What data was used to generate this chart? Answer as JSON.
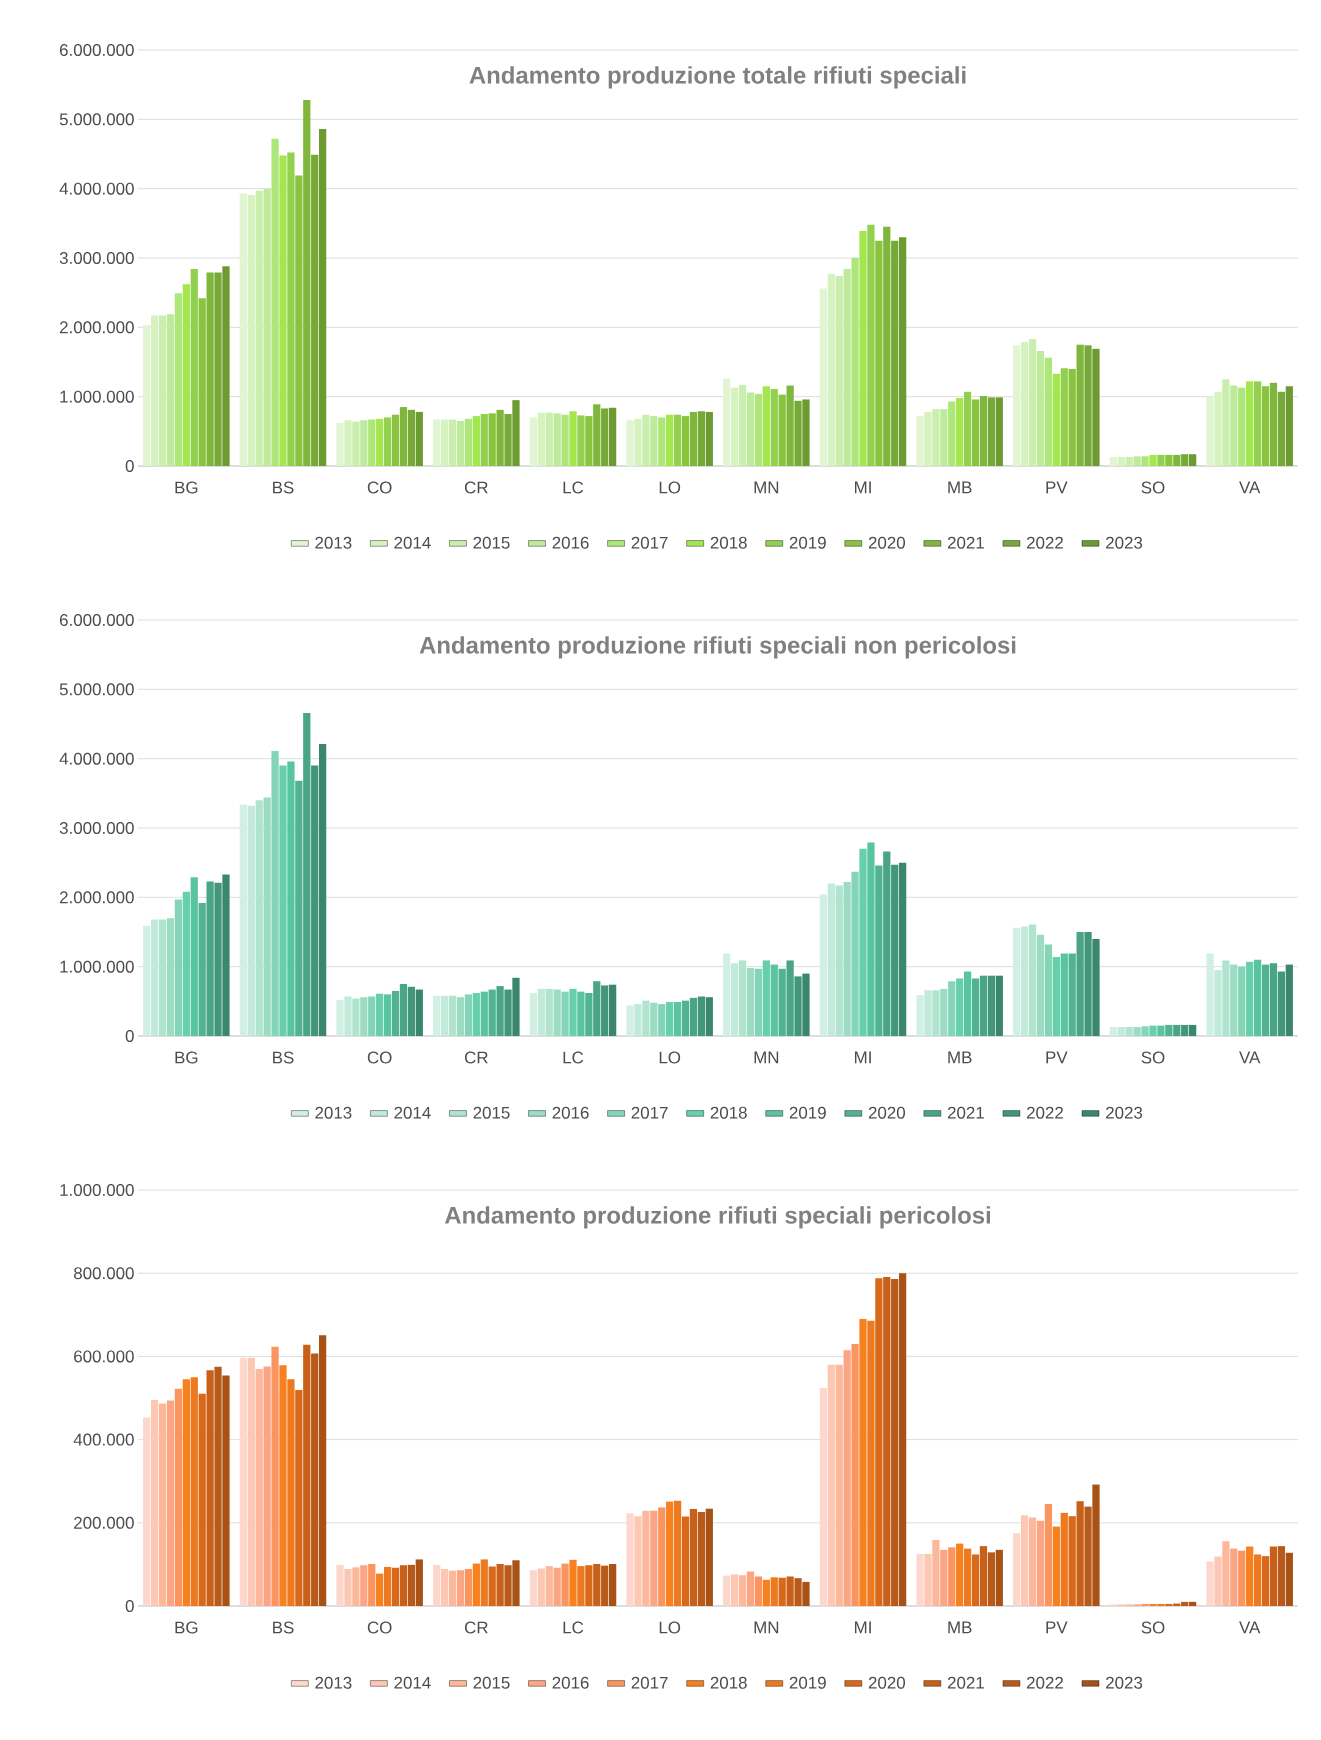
{
  "chart_data": [
    {
      "type": "bar",
      "title": "Andamento produzione totale rifiuti speciali",
      "categories": [
        "BG",
        "BS",
        "CO",
        "CR",
        "LC",
        "LO",
        "MN",
        "MI",
        "MB",
        "PV",
        "SO",
        "VA"
      ],
      "ylim": [
        0,
        6000000
      ],
      "yticks": [
        0,
        {
          "value": 1000000,
          "label": "1.000.000"
        },
        {
          "value": 2000000,
          "label": "2.000.000"
        },
        {
          "value": 3000000,
          "label": "3.000.000"
        },
        {
          "value": 4000000,
          "label": "4.000.000"
        },
        {
          "value": 5000000,
          "label": "5.000.000"
        },
        {
          "value": 6000000,
          "label": "6.000.000"
        }
      ],
      "grid": "y",
      "legend": "bottom",
      "series": [
        {
          "name": "2013",
          "color": "#e2f5d2",
          "values": [
            2030000,
            3930000,
            620000,
            670000,
            700000,
            660000,
            1260000,
            2560000,
            720000,
            1740000,
            130000,
            1000000
          ]
        },
        {
          "name": "2014",
          "color": "#d6f2bf",
          "values": [
            2170000,
            3910000,
            660000,
            670000,
            770000,
            680000,
            1130000,
            2770000,
            780000,
            1790000,
            130000,
            1070000
          ]
        },
        {
          "name": "2015",
          "color": "#caeeae",
          "values": [
            2170000,
            3970000,
            640000,
            670000,
            770000,
            740000,
            1170000,
            2740000,
            820000,
            1830000,
            130000,
            1250000
          ]
        },
        {
          "name": "2016",
          "color": "#bdeb9b",
          "values": [
            2190000,
            4000000,
            660000,
            650000,
            760000,
            720000,
            1060000,
            2840000,
            820000,
            1660000,
            140000,
            1160000
          ]
        },
        {
          "name": "2017",
          "color": "#ade77a",
          "values": [
            2490000,
            4720000,
            670000,
            680000,
            740000,
            700000,
            1040000,
            3000000,
            930000,
            1560000,
            140000,
            1130000
          ]
        },
        {
          "name": "2018",
          "color": "#a3e64e",
          "values": [
            2620000,
            4480000,
            680000,
            720000,
            790000,
            740000,
            1150000,
            3390000,
            980000,
            1330000,
            160000,
            1220000
          ]
        },
        {
          "name": "2019",
          "color": "#92d050",
          "values": [
            2840000,
            4520000,
            700000,
            750000,
            730000,
            740000,
            1110000,
            3480000,
            1070000,
            1410000,
            160000,
            1220000
          ]
        },
        {
          "name": "2020",
          "color": "#8ac43f",
          "values": [
            2420000,
            4190000,
            740000,
            760000,
            720000,
            720000,
            1030000,
            3250000,
            960000,
            1400000,
            160000,
            1150000
          ]
        },
        {
          "name": "2021",
          "color": "#7fb63c",
          "values": [
            2790000,
            5280000,
            850000,
            810000,
            890000,
            780000,
            1160000,
            3450000,
            1010000,
            1750000,
            160000,
            1200000
          ]
        },
        {
          "name": "2022",
          "color": "#76a937",
          "values": [
            2790000,
            4490000,
            810000,
            750000,
            830000,
            790000,
            940000,
            3250000,
            990000,
            1740000,
            170000,
            1070000
          ]
        },
        {
          "name": "2023",
          "color": "#6b9b31",
          "values": [
            2880000,
            4860000,
            780000,
            950000,
            840000,
            780000,
            960000,
            3300000,
            990000,
            1690000,
            170000,
            1150000
          ]
        }
      ]
    },
    {
      "type": "bar",
      "title": "Andamento produzione rifiuti speciali non pericolosi",
      "categories": [
        "BG",
        "BS",
        "CO",
        "CR",
        "LC",
        "LO",
        "MN",
        "MI",
        "MB",
        "PV",
        "SO",
        "VA"
      ],
      "ylim": [
        0,
        6000000
      ],
      "yticks": [
        0,
        {
          "value": 1000000,
          "label": "1.000.000"
        },
        {
          "value": 2000000,
          "label": "2.000.000"
        },
        {
          "value": 3000000,
          "label": "3.000.000"
        },
        {
          "value": 4000000,
          "label": "4.000.000"
        },
        {
          "value": 5000000,
          "label": "5.000.000"
        },
        {
          "value": 6000000,
          "label": "6.000.000"
        }
      ],
      "grid": "y",
      "legend": "bottom",
      "series": [
        {
          "name": "2013",
          "color": "#d1efe3",
          "values": [
            1590000,
            3340000,
            520000,
            580000,
            620000,
            440000,
            1190000,
            2040000,
            590000,
            1560000,
            130000,
            1190000
          ]
        },
        {
          "name": "2014",
          "color": "#c2eadb",
          "values": [
            1680000,
            3320000,
            570000,
            580000,
            680000,
            460000,
            1050000,
            2200000,
            660000,
            1580000,
            130000,
            950000
          ]
        },
        {
          "name": "2015",
          "color": "#b0e4d0",
          "values": [
            1680000,
            3400000,
            540000,
            580000,
            680000,
            510000,
            1090000,
            2170000,
            660000,
            1610000,
            130000,
            1090000
          ]
        },
        {
          "name": "2016",
          "color": "#9cdcc3",
          "values": [
            1700000,
            3440000,
            560000,
            560000,
            670000,
            480000,
            980000,
            2220000,
            680000,
            1460000,
            130000,
            1030000
          ]
        },
        {
          "name": "2017",
          "color": "#84d5b7",
          "values": [
            1970000,
            4110000,
            570000,
            600000,
            640000,
            460000,
            970000,
            2370000,
            790000,
            1320000,
            140000,
            1000000
          ]
        },
        {
          "name": "2018",
          "color": "#66cfac",
          "values": [
            2080000,
            3900000,
            610000,
            620000,
            680000,
            490000,
            1090000,
            2700000,
            830000,
            1140000,
            150000,
            1070000
          ]
        },
        {
          "name": "2019",
          "color": "#58c4a0",
          "values": [
            2290000,
            3960000,
            600000,
            640000,
            640000,
            490000,
            1030000,
            2790000,
            930000,
            1190000,
            150000,
            1100000
          ]
        },
        {
          "name": "2020",
          "color": "#52b393",
          "values": [
            1920000,
            3680000,
            650000,
            670000,
            620000,
            510000,
            970000,
            2460000,
            830000,
            1190000,
            160000,
            1030000
          ]
        },
        {
          "name": "2021",
          "color": "#4aa586",
          "values": [
            2230000,
            4660000,
            750000,
            720000,
            790000,
            550000,
            1090000,
            2660000,
            870000,
            1500000,
            160000,
            1050000
          ]
        },
        {
          "name": "2022",
          "color": "#42967a",
          "values": [
            2210000,
            3900000,
            710000,
            670000,
            730000,
            570000,
            860000,
            2470000,
            870000,
            1500000,
            160000,
            930000
          ]
        },
        {
          "name": "2023",
          "color": "#3a876d",
          "values": [
            2330000,
            4210000,
            670000,
            840000,
            740000,
            560000,
            900000,
            2500000,
            870000,
            1400000,
            160000,
            1030000
          ]
        }
      ]
    },
    {
      "type": "bar",
      "title": "Andamento produzione rifiuti speciali pericolosi",
      "categories": [
        "BG",
        "BS",
        "CO",
        "CR",
        "LC",
        "LO",
        "MN",
        "MI",
        "MB",
        "PV",
        "SO",
        "VA"
      ],
      "ylim": [
        0,
        1000000
      ],
      "yticks": [
        0,
        {
          "value": 200000,
          "label": "200.000"
        },
        {
          "value": 400000,
          "label": "400.000"
        },
        {
          "value": 600000,
          "label": "600.000"
        },
        {
          "value": 800000,
          "label": "800.000"
        },
        {
          "value": 1000000,
          "label": "1.000.000"
        }
      ],
      "grid": "y",
      "legend": "bottom",
      "series": [
        {
          "name": "2013",
          "color": "#fdd7cb",
          "values": [
            453000,
            597000,
            99000,
            99000,
            86000,
            223000,
            73000,
            524000,
            125000,
            175000,
            4000,
            107000
          ]
        },
        {
          "name": "2014",
          "color": "#fcc8b4",
          "values": [
            495000,
            597000,
            89000,
            89000,
            90000,
            216000,
            76000,
            580000,
            125000,
            218000,
            4000,
            119000
          ]
        },
        {
          "name": "2015",
          "color": "#fcb89b",
          "values": [
            487000,
            570000,
            93000,
            85000,
            96000,
            229000,
            74000,
            580000,
            159000,
            213000,
            4000,
            156000
          ]
        },
        {
          "name": "2016",
          "color": "#fba584",
          "values": [
            494000,
            576000,
            98000,
            86000,
            92000,
            229000,
            83000,
            615000,
            135000,
            205000,
            4000,
            138000
          ]
        },
        {
          "name": "2017",
          "color": "#fb9560",
          "values": [
            522000,
            623000,
            101000,
            89000,
            102000,
            237000,
            71000,
            630000,
            141000,
            245000,
            5000,
            133000
          ]
        },
        {
          "name": "2018",
          "color": "#f7801f",
          "values": [
            545000,
            579000,
            78000,
            102000,
            111000,
            251000,
            63000,
            690000,
            150000,
            191000,
            5000,
            143000
          ]
        },
        {
          "name": "2019",
          "color": "#ee7a1f",
          "values": [
            550000,
            545000,
            94000,
            112000,
            96000,
            253000,
            69000,
            686000,
            138000,
            224000,
            5000,
            124000
          ]
        },
        {
          "name": "2020",
          "color": "#d9691a",
          "values": [
            510000,
            519000,
            92000,
            95000,
            98000,
            215000,
            68000,
            788000,
            124000,
            216000,
            5000,
            120000
          ]
        },
        {
          "name": "2021",
          "color": "#c9601a",
          "values": [
            567000,
            628000,
            98000,
            101000,
            101000,
            233000,
            71000,
            791000,
            144000,
            252000,
            6000,
            143000
          ]
        },
        {
          "name": "2022",
          "color": "#b85a19",
          "values": [
            575000,
            607000,
            99000,
            98000,
            97000,
            226000,
            67000,
            786000,
            129000,
            239000,
            10000,
            144000
          ]
        },
        {
          "name": "2023",
          "color": "#a85216",
          "values": [
            554000,
            651000,
            112000,
            110000,
            101000,
            234000,
            58000,
            800000,
            135000,
            292000,
            10000,
            128000
          ]
        }
      ]
    }
  ]
}
